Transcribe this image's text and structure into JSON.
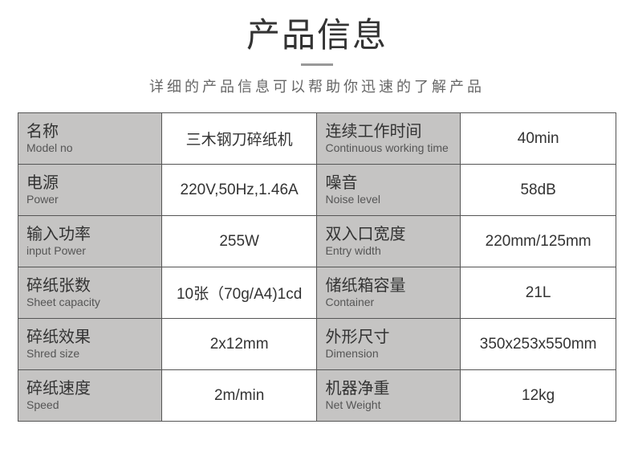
{
  "header": {
    "title": "产品信息",
    "subtitle": "详细的产品信息可以帮助你迅速的了解产品"
  },
  "colors": {
    "label_bg": "#c5c4c3",
    "value_bg": "#ffffff",
    "border": "#555555",
    "title_color": "#333333",
    "subtitle_color": "#666666"
  },
  "typography": {
    "title_fontsize": 42,
    "subtitle_fontsize": 18,
    "label_cn_fontsize": 20,
    "label_en_fontsize": 14,
    "value_fontsize": 19
  },
  "table": {
    "rows": [
      {
        "left_label_cn": "名称",
        "left_label_en": "Model no",
        "left_value": "三木钢刀碎纸机",
        "right_label_cn": "连续工作时间",
        "right_label_en": "Continuous working time",
        "right_value": "40min"
      },
      {
        "left_label_cn": "电源",
        "left_label_en": "Power",
        "left_value": "220V,50Hz,1.46A",
        "right_label_cn": "噪音",
        "right_label_en": "Noise   level",
        "right_value": "58dB"
      },
      {
        "left_label_cn": "输入功率",
        "left_label_en": "input   Power",
        "left_value": "255W",
        "right_label_cn": "双入口宽度",
        "right_label_en": "Entry   width",
        "right_value": "220mm/125mm"
      },
      {
        "left_label_cn": "碎纸张数",
        "left_label_en": "Sheet    capacity",
        "left_value": "10张（70g/A4)1cd",
        "right_label_cn": "储纸箱容量",
        "right_label_en": "Container",
        "right_value": "21L"
      },
      {
        "left_label_cn": "碎纸效果",
        "left_label_en": "Shred     size",
        "left_value": "2x12mm",
        "right_label_cn": "外形尺寸",
        "right_label_en": "Dimension",
        "right_value": "350x253x550mm"
      },
      {
        "left_label_cn": "碎纸速度",
        "left_label_en": "Speed",
        "left_value": "2m/min",
        "right_label_cn": "机器净重",
        "right_label_en": "Net    Weight",
        "right_value": "12kg"
      }
    ]
  }
}
